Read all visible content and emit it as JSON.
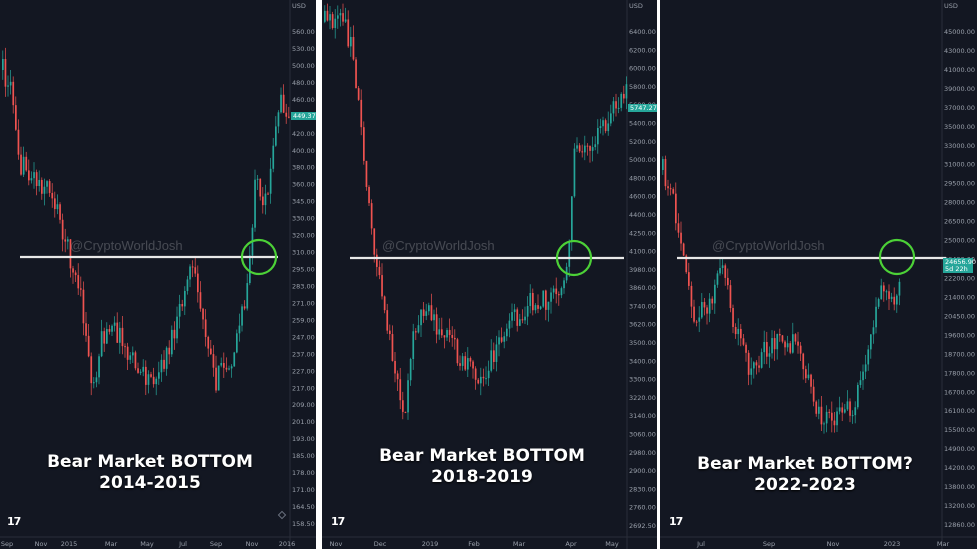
{
  "watermark": "@CryptoWorldJosh",
  "colors": {
    "background": "#131722",
    "up": "#26a69a",
    "down": "#ef5350",
    "support": "#e8e8e8",
    "circle": "#4cd137",
    "price_tag": "#26a69a"
  },
  "chart_data": [
    {
      "type": "candlestick",
      "caption_line1": "Bear Market BOTTOM",
      "caption_line2": "2014-2015",
      "axis_currency": "USD",
      "y_ticks": [
        "560.00",
        "530.00",
        "500.00",
        "480.00",
        "460.00",
        "440.00",
        "420.00",
        "400.00",
        "380.00",
        "360.00",
        "345.00",
        "330.00",
        "320.00",
        "310.00",
        "295.00",
        "283.00",
        "271.00",
        "259.00",
        "247.00",
        "237.00",
        "227.00",
        "217.00",
        "209.00",
        "201.00",
        "193.00",
        "185.00",
        "178.00",
        "171.00",
        "164.50",
        "158.50"
      ],
      "x_ticks": [
        "Sep",
        "Nov",
        "2015",
        "Mar",
        "May",
        "Jul",
        "Sep",
        "Nov",
        "2016"
      ],
      "support_level": 315,
      "price_tag": "449.37",
      "x": [
        "Sep 2014",
        "Oct 2014",
        "Nov 2014",
        "Dec 2014",
        "Jan 2015",
        "Feb 2015",
        "Mar 2015",
        "Apr 2015",
        "May 2015",
        "Jun 2015",
        "Jul 2015",
        "Aug 2015",
        "Sep 2015",
        "Oct 2015",
        "Nov 2015",
        "Dec 2015"
      ],
      "close": [
        480,
        360,
        375,
        320,
        218,
        255,
        245,
        225,
        232,
        262,
        285,
        225,
        238,
        310,
        360,
        430
      ]
    },
    {
      "type": "candlestick",
      "caption_line1": "Bear Market BOTTOM",
      "caption_line2": "2018-2019",
      "axis_currency": "USD",
      "y_ticks": [
        "6400.00",
        "6200.00",
        "6000.00",
        "5800.00",
        "5600.00",
        "5400.00",
        "5200.00",
        "5000.00",
        "4800.00",
        "4600.00",
        "4400.00",
        "4250.00",
        "4100.00",
        "3980.00",
        "3860.00",
        "3740.00",
        "3620.00",
        "3500.00",
        "3400.00",
        "3300.00",
        "3220.00",
        "3140.00",
        "3060.00",
        "2980.00",
        "2900.00",
        "2830.00",
        "2760.00",
        "2692.50"
      ],
      "x_ticks": [
        "Nov",
        "Dec",
        "2019",
        "Feb",
        "Mar",
        "Apr",
        "May"
      ],
      "support_level": 4250,
      "price_tag": "5747.27",
      "x": [
        "Nov 2018",
        "Dec 2018",
        "Jan 2019",
        "Feb 2019",
        "Mar 2019",
        "Apr 2019",
        "May 2019"
      ],
      "close": [
        6300,
        3700,
        3450,
        3500,
        3800,
        5200,
        5750
      ]
    },
    {
      "type": "candlestick",
      "caption_line1": "Bear Market BOTTOM?",
      "caption_line2": "2022-2023",
      "axis_currency": "USD",
      "y_ticks": [
        "45000.00",
        "43000.00",
        "41000.00",
        "39000.00",
        "37000.00",
        "35000.00",
        "33000.00",
        "31000.00",
        "29500.00",
        "28000.00",
        "26500.00",
        "25000.00",
        "23400.00",
        "22200.00",
        "21400.00",
        "20450.00",
        "19600.00",
        "18700.00",
        "17800.00",
        "16700.00",
        "16100.00",
        "15500.00",
        "14900.00",
        "14200.00",
        "13800.00",
        "13200.00",
        "12860.00"
      ],
      "x_ticks": [
        "Jul",
        "Sep",
        "Nov",
        "2023",
        "Mar"
      ],
      "support_level": 24500,
      "price_tag": "24656.90",
      "price_sub": "5d 22h",
      "x": [
        "Jun 2022",
        "Jul 2022",
        "Aug 2022",
        "Sep 2022",
        "Oct 2022",
        "Nov 2022",
        "Dec 2022",
        "Jan 2023",
        "Feb 2023"
      ],
      "close": [
        22000,
        23000,
        21500,
        19800,
        20200,
        16800,
        16500,
        22800,
        24600
      ]
    }
  ]
}
